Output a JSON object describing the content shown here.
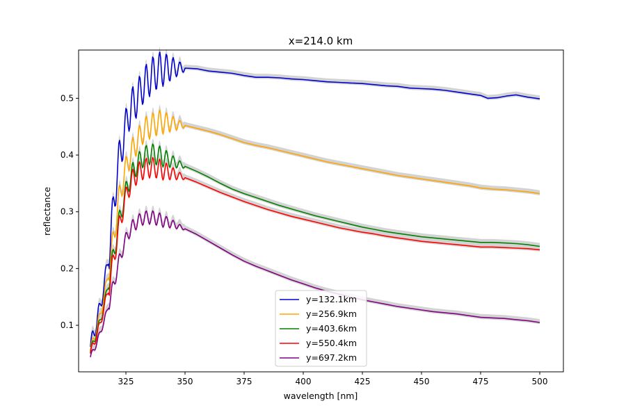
{
  "chart_data": {
    "type": "line",
    "title": "x=214.0 km",
    "xlabel": "wavelength [nm]",
    "ylabel": "reflectance",
    "xlim": [
      305,
      510
    ],
    "ylim": [
      0.018,
      0.585
    ],
    "xticks": [
      325,
      350,
      375,
      400,
      425,
      450,
      475,
      500
    ],
    "yticks": [
      0.1,
      0.2,
      0.3,
      0.4,
      0.5
    ],
    "grid": false,
    "legend_position": "lower-center",
    "uncertainty_band_color": "#d3d3d3",
    "series": [
      {
        "name": "y=132.1km",
        "color": "#0000cd",
        "points": [
          [
            310,
            0.062
          ],
          [
            312,
            0.095
          ],
          [
            314,
            0.13
          ],
          [
            316,
            0.175
          ],
          [
            318,
            0.23
          ],
          [
            320,
            0.32
          ],
          [
            322,
            0.39
          ],
          [
            324,
            0.43
          ],
          [
            326,
            0.47
          ],
          [
            328,
            0.49
          ],
          [
            330,
            0.5
          ],
          [
            332,
            0.52
          ],
          [
            334,
            0.53
          ],
          [
            336,
            0.54
          ],
          [
            338,
            0.547
          ],
          [
            340,
            0.551
          ],
          [
            345,
            0.553
          ],
          [
            350,
            0.553
          ],
          [
            355,
            0.552
          ],
          [
            360,
            0.548
          ],
          [
            365,
            0.546
          ],
          [
            370,
            0.544
          ],
          [
            375,
            0.54
          ],
          [
            380,
            0.537
          ],
          [
            385,
            0.537
          ],
          [
            390,
            0.536
          ],
          [
            395,
            0.534
          ],
          [
            400,
            0.533
          ],
          [
            405,
            0.531
          ],
          [
            410,
            0.529
          ],
          [
            415,
            0.528
          ],
          [
            420,
            0.527
          ],
          [
            425,
            0.526
          ],
          [
            430,
            0.524
          ],
          [
            435,
            0.522
          ],
          [
            440,
            0.521
          ],
          [
            445,
            0.518
          ],
          [
            450,
            0.517
          ],
          [
            455,
            0.516
          ],
          [
            460,
            0.514
          ],
          [
            465,
            0.511
          ],
          [
            470,
            0.508
          ],
          [
            475,
            0.505
          ],
          [
            478,
            0.5
          ],
          [
            482,
            0.501
          ],
          [
            486,
            0.504
          ],
          [
            490,
            0.506
          ],
          [
            495,
            0.502
          ],
          [
            500,
            0.499
          ]
        ]
      },
      {
        "name": "y=256.9km",
        "color": "#ffa500",
        "points": [
          [
            310,
            0.055
          ],
          [
            312,
            0.085
          ],
          [
            314,
            0.115
          ],
          [
            316,
            0.155
          ],
          [
            318,
            0.2
          ],
          [
            320,
            0.26
          ],
          [
            322,
            0.32
          ],
          [
            324,
            0.36
          ],
          [
            326,
            0.39
          ],
          [
            328,
            0.41
          ],
          [
            330,
            0.425
          ],
          [
            332,
            0.44
          ],
          [
            334,
            0.448
          ],
          [
            336,
            0.452
          ],
          [
            338,
            0.456
          ],
          [
            340,
            0.458
          ],
          [
            345,
            0.455
          ],
          [
            350,
            0.452
          ],
          [
            355,
            0.447
          ],
          [
            360,
            0.442
          ],
          [
            365,
            0.436
          ],
          [
            370,
            0.429
          ],
          [
            375,
            0.422
          ],
          [
            380,
            0.417
          ],
          [
            385,
            0.413
          ],
          [
            390,
            0.408
          ],
          [
            395,
            0.403
          ],
          [
            400,
            0.398
          ],
          [
            405,
            0.393
          ],
          [
            410,
            0.388
          ],
          [
            415,
            0.384
          ],
          [
            420,
            0.38
          ],
          [
            425,
            0.376
          ],
          [
            430,
            0.372
          ],
          [
            435,
            0.368
          ],
          [
            440,
            0.364
          ],
          [
            445,
            0.361
          ],
          [
            450,
            0.358
          ],
          [
            455,
            0.355
          ],
          [
            460,
            0.352
          ],
          [
            465,
            0.349
          ],
          [
            470,
            0.346
          ],
          [
            475,
            0.342
          ],
          [
            480,
            0.34
          ],
          [
            485,
            0.339
          ],
          [
            490,
            0.337
          ],
          [
            495,
            0.335
          ],
          [
            500,
            0.332
          ]
        ]
      },
      {
        "name": "y=403.6km",
        "color": "#008000",
        "points": [
          [
            310,
            0.052
          ],
          [
            312,
            0.08
          ],
          [
            314,
            0.105
          ],
          [
            316,
            0.14
          ],
          [
            318,
            0.18
          ],
          [
            320,
            0.23
          ],
          [
            322,
            0.28
          ],
          [
            324,
            0.32
          ],
          [
            326,
            0.35
          ],
          [
            328,
            0.37
          ],
          [
            330,
            0.385
          ],
          [
            332,
            0.395
          ],
          [
            334,
            0.4
          ],
          [
            336,
            0.402
          ],
          [
            338,
            0.4
          ],
          [
            340,
            0.397
          ],
          [
            345,
            0.388
          ],
          [
            350,
            0.38
          ],
          [
            355,
            0.371
          ],
          [
            360,
            0.361
          ],
          [
            365,
            0.35
          ],
          [
            370,
            0.34
          ],
          [
            375,
            0.332
          ],
          [
            380,
            0.325
          ],
          [
            385,
            0.318
          ],
          [
            390,
            0.311
          ],
          [
            395,
            0.305
          ],
          [
            400,
            0.299
          ],
          [
            405,
            0.293
          ],
          [
            410,
            0.288
          ],
          [
            415,
            0.283
          ],
          [
            420,
            0.278
          ],
          [
            425,
            0.273
          ],
          [
            430,
            0.269
          ],
          [
            435,
            0.265
          ],
          [
            440,
            0.262
          ],
          [
            445,
            0.259
          ],
          [
            450,
            0.256
          ],
          [
            455,
            0.254
          ],
          [
            460,
            0.252
          ],
          [
            465,
            0.25
          ],
          [
            470,
            0.248
          ],
          [
            475,
            0.246
          ],
          [
            480,
            0.246
          ],
          [
            485,
            0.245
          ],
          [
            490,
            0.244
          ],
          [
            495,
            0.242
          ],
          [
            500,
            0.239
          ]
        ]
      },
      {
        "name": "y=550.4km",
        "color": "#ff0000",
        "points": [
          [
            310,
            0.05
          ],
          [
            312,
            0.075
          ],
          [
            314,
            0.1
          ],
          [
            316,
            0.135
          ],
          [
            318,
            0.17
          ],
          [
            320,
            0.22
          ],
          [
            322,
            0.27
          ],
          [
            324,
            0.31
          ],
          [
            326,
            0.34
          ],
          [
            328,
            0.358
          ],
          [
            330,
            0.368
          ],
          [
            332,
            0.374
          ],
          [
            334,
            0.377
          ],
          [
            336,
            0.378
          ],
          [
            338,
            0.377
          ],
          [
            340,
            0.374
          ],
          [
            345,
            0.367
          ],
          [
            350,
            0.36
          ],
          [
            355,
            0.352
          ],
          [
            360,
            0.343
          ],
          [
            365,
            0.334
          ],
          [
            370,
            0.326
          ],
          [
            375,
            0.318
          ],
          [
            380,
            0.311
          ],
          [
            385,
            0.304
          ],
          [
            390,
            0.298
          ],
          [
            395,
            0.292
          ],
          [
            400,
            0.287
          ],
          [
            405,
            0.282
          ],
          [
            410,
            0.277
          ],
          [
            415,
            0.272
          ],
          [
            420,
            0.268
          ],
          [
            425,
            0.264
          ],
          [
            430,
            0.261
          ],
          [
            435,
            0.257
          ],
          [
            440,
            0.254
          ],
          [
            445,
            0.251
          ],
          [
            450,
            0.248
          ],
          [
            455,
            0.246
          ],
          [
            460,
            0.244
          ],
          [
            465,
            0.242
          ],
          [
            470,
            0.24
          ],
          [
            475,
            0.238
          ],
          [
            480,
            0.238
          ],
          [
            485,
            0.237
          ],
          [
            490,
            0.236
          ],
          [
            495,
            0.235
          ],
          [
            500,
            0.233
          ]
        ]
      },
      {
        "name": "y=697.2km",
        "color": "#800080",
        "points": [
          [
            310,
            0.044
          ],
          [
            312,
            0.062
          ],
          [
            314,
            0.085
          ],
          [
            316,
            0.11
          ],
          [
            318,
            0.14
          ],
          [
            320,
            0.175
          ],
          [
            322,
            0.21
          ],
          [
            324,
            0.24
          ],
          [
            326,
            0.262
          ],
          [
            328,
            0.275
          ],
          [
            330,
            0.283
          ],
          [
            332,
            0.288
          ],
          [
            334,
            0.29
          ],
          [
            336,
            0.29
          ],
          [
            338,
            0.288
          ],
          [
            340,
            0.285
          ],
          [
            345,
            0.278
          ],
          [
            350,
            0.27
          ],
          [
            355,
            0.26
          ],
          [
            360,
            0.248
          ],
          [
            365,
            0.236
          ],
          [
            370,
            0.224
          ],
          [
            375,
            0.213
          ],
          [
            380,
            0.204
          ],
          [
            385,
            0.196
          ],
          [
            390,
            0.188
          ],
          [
            395,
            0.18
          ],
          [
            400,
            0.173
          ],
          [
            405,
            0.166
          ],
          [
            410,
            0.16
          ],
          [
            415,
            0.155
          ],
          [
            420,
            0.15
          ],
          [
            425,
            0.145
          ],
          [
            430,
            0.141
          ],
          [
            435,
            0.137
          ],
          [
            440,
            0.133
          ],
          [
            445,
            0.13
          ],
          [
            450,
            0.127
          ],
          [
            455,
            0.124
          ],
          [
            460,
            0.122
          ],
          [
            465,
            0.12
          ],
          [
            470,
            0.117
          ],
          [
            475,
            0.114
          ],
          [
            480,
            0.113
          ],
          [
            485,
            0.112
          ],
          [
            490,
            0.11
          ],
          [
            495,
            0.108
          ],
          [
            500,
            0.105
          ]
        ]
      }
    ]
  }
}
